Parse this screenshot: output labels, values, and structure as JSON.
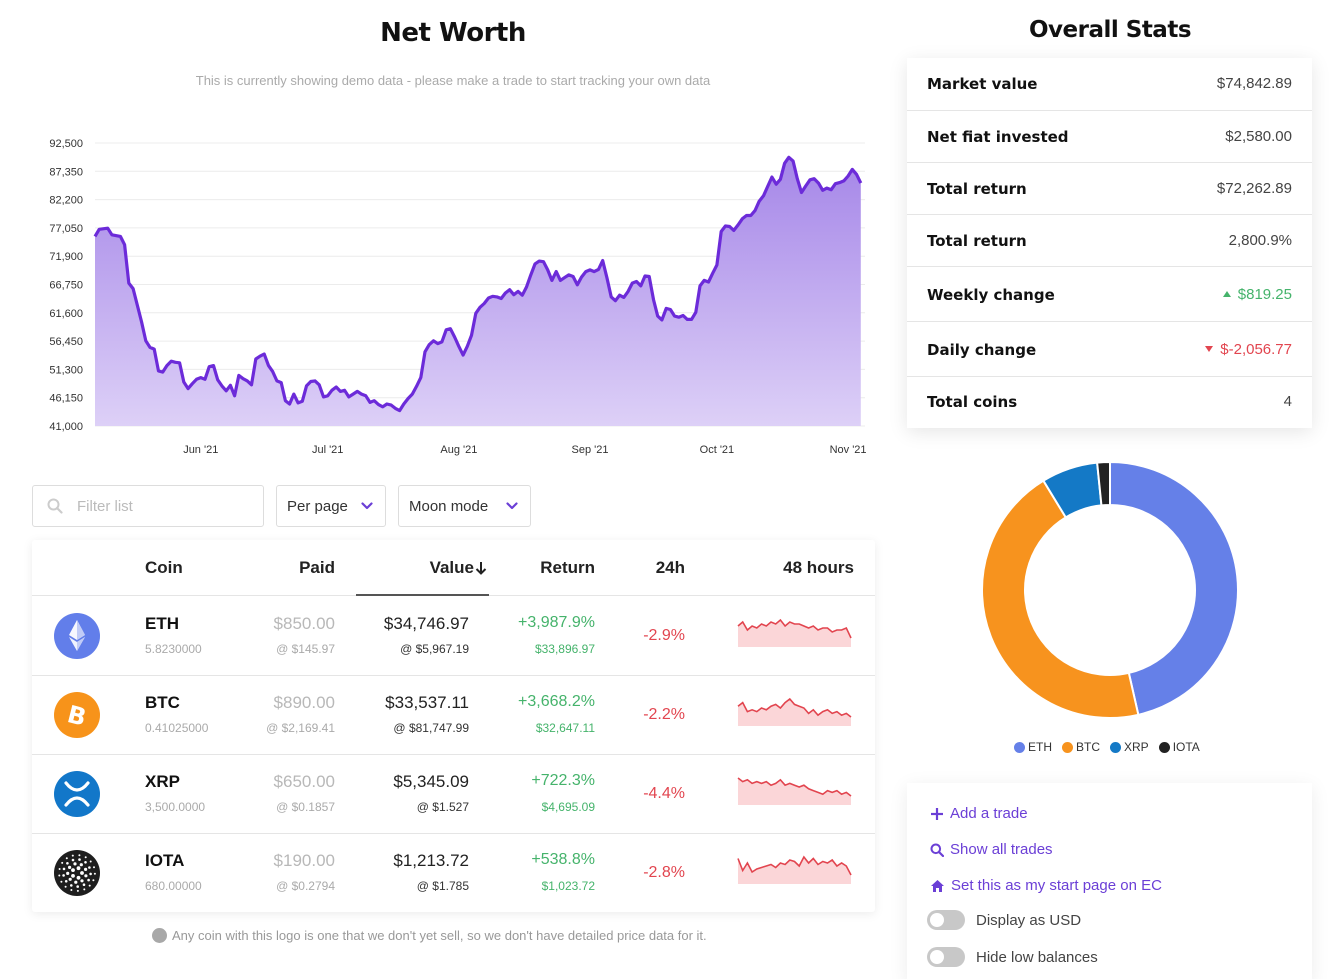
{
  "net_worth": {
    "title": "Net Worth",
    "subtitle": "This is currently showing demo data - please make a trade to start tracking your own data"
  },
  "chart_data": {
    "type": "area",
    "title": "Net Worth",
    "xlabel": "",
    "ylabel": "",
    "ylim": [
      41000,
      92500
    ],
    "y_ticks": [
      "92,500",
      "87,350",
      "82,200",
      "77,050",
      "71,900",
      "66,750",
      "61,600",
      "56,450",
      "51,300",
      "46,150",
      "41,000"
    ],
    "x_ticks": [
      "Jun '21",
      "Jul '21",
      "Aug '21",
      "Sep '21",
      "Oct '21",
      "Nov '21"
    ],
    "grid": true,
    "color": "#6c2bd9",
    "fill": "#b9a0ee",
    "x_range_days": [
      0,
      182
    ],
    "x_tick_days": [
      25,
      55,
      86,
      117,
      147,
      178
    ],
    "points": [
      [
        0,
        75500
      ],
      [
        1,
        76800
      ],
      [
        3,
        77000
      ],
      [
        4,
        75800
      ],
      [
        6,
        75500
      ],
      [
        7,
        74000
      ],
      [
        8,
        67000
      ],
      [
        9,
        66000
      ],
      [
        10,
        63000
      ],
      [
        11,
        60000
      ],
      [
        12,
        56500
      ],
      [
        13,
        55300
      ],
      [
        14,
        55000
      ],
      [
        15,
        51000
      ],
      [
        16,
        50800
      ],
      [
        17,
        52000
      ],
      [
        18,
        52800
      ],
      [
        19,
        52600
      ],
      [
        20,
        52500
      ],
      [
        21,
        49000
      ],
      [
        22,
        47800
      ],
      [
        23,
        48700
      ],
      [
        24,
        49500
      ],
      [
        25,
        49800
      ],
      [
        26,
        49500
      ],
      [
        27,
        51800
      ],
      [
        28,
        52000
      ],
      [
        29,
        49400
      ],
      [
        30,
        48300
      ],
      [
        31,
        47400
      ],
      [
        32,
        48400
      ],
      [
        33,
        46500
      ],
      [
        34,
        50200
      ],
      [
        35,
        49600
      ],
      [
        36,
        49200
      ],
      [
        37,
        48500
      ],
      [
        38,
        53200
      ],
      [
        39,
        53700
      ],
      [
        40,
        54100
      ],
      [
        41,
        52000
      ],
      [
        42,
        50900
      ],
      [
        43,
        49200
      ],
      [
        44,
        48900
      ],
      [
        45,
        45600
      ],
      [
        46,
        45000
      ],
      [
        47,
        46800
      ],
      [
        48,
        45200
      ],
      [
        49,
        45500
      ],
      [
        50,
        48300
      ],
      [
        51,
        49100
      ],
      [
        52,
        49200
      ],
      [
        53,
        48500
      ],
      [
        54,
        46300
      ],
      [
        55,
        46500
      ],
      [
        56,
        47500
      ],
      [
        57,
        48100
      ],
      [
        58,
        47300
      ],
      [
        59,
        47500
      ],
      [
        60,
        46300
      ],
      [
        61,
        46800
      ],
      [
        62,
        47300
      ],
      [
        63,
        46800
      ],
      [
        64,
        46500
      ],
      [
        65,
        45300
      ],
      [
        66,
        45600
      ],
      [
        67,
        44900
      ],
      [
        68,
        44500
      ],
      [
        69,
        45000
      ],
      [
        70,
        44800
      ],
      [
        71,
        44200
      ],
      [
        72,
        43800
      ],
      [
        73,
        45000
      ],
      [
        74,
        46000
      ],
      [
        75,
        46800
      ],
      [
        76,
        48200
      ],
      [
        77,
        49800
      ],
      [
        78,
        54500
      ],
      [
        79,
        55800
      ],
      [
        80,
        56500
      ],
      [
        81,
        56000
      ],
      [
        82,
        56300
      ],
      [
        83,
        58500
      ],
      [
        84,
        58700
      ],
      [
        85,
        57200
      ],
      [
        86,
        55500
      ],
      [
        87,
        53900
      ],
      [
        88,
        55500
      ],
      [
        89,
        57500
      ],
      [
        90,
        61500
      ],
      [
        91,
        62600
      ],
      [
        92,
        63300
      ],
      [
        93,
        64300
      ],
      [
        94,
        64600
      ],
      [
        95,
        64500
      ],
      [
        96,
        64200
      ],
      [
        97,
        65200
      ],
      [
        98,
        65800
      ],
      [
        99,
        64900
      ],
      [
        100,
        65500
      ],
      [
        101,
        64800
      ],
      [
        102,
        66300
      ],
      [
        103,
        68500
      ],
      [
        104,
        70500
      ],
      [
        105,
        71000
      ],
      [
        106,
        70900
      ],
      [
        107,
        69400
      ],
      [
        108,
        67500
      ],
      [
        109,
        69100
      ],
      [
        110,
        67500
      ],
      [
        111,
        68000
      ],
      [
        112,
        68500
      ],
      [
        113,
        68200
      ],
      [
        114,
        66700
      ],
      [
        115,
        68100
      ],
      [
        116,
        69100
      ],
      [
        117,
        69400
      ],
      [
        118,
        69100
      ],
      [
        119,
        69500
      ],
      [
        120,
        71100
      ],
      [
        121,
        68000
      ],
      [
        122,
        64500
      ],
      [
        123,
        63800
      ],
      [
        124,
        64800
      ],
      [
        125,
        64400
      ],
      [
        126,
        65500
      ],
      [
        127,
        67000
      ],
      [
        128,
        67300
      ],
      [
        129,
        66500
      ],
      [
        130,
        68300
      ],
      [
        131,
        68200
      ],
      [
        132,
        64000
      ],
      [
        133,
        61000
      ],
      [
        134,
        60300
      ],
      [
        135,
        62400
      ],
      [
        136,
        62200
      ],
      [
        137,
        61000
      ],
      [
        138,
        60800
      ],
      [
        139,
        61100
      ],
      [
        140,
        60400
      ],
      [
        141,
        60400
      ],
      [
        142,
        61700
      ],
      [
        143,
        66500
      ],
      [
        144,
        67500
      ],
      [
        145,
        67200
      ],
      [
        146,
        68800
      ],
      [
        147,
        70300
      ],
      [
        148,
        76400
      ],
      [
        149,
        77400
      ],
      [
        150,
        77300
      ],
      [
        151,
        76600
      ],
      [
        152,
        77600
      ],
      [
        153,
        78700
      ],
      [
        154,
        79300
      ],
      [
        155,
        79300
      ],
      [
        156,
        80200
      ],
      [
        157,
        81900
      ],
      [
        158,
        82900
      ],
      [
        159,
        84600
      ],
      [
        160,
        86300
      ],
      [
        161,
        85000
      ],
      [
        162,
        85900
      ],
      [
        163,
        88800
      ],
      [
        164,
        89900
      ],
      [
        165,
        89200
      ],
      [
        166,
        86000
      ],
      [
        167,
        83500
      ],
      [
        168,
        84700
      ],
      [
        169,
        85800
      ],
      [
        170,
        86000
      ],
      [
        171,
        85200
      ],
      [
        172,
        83900
      ],
      [
        173,
        84300
      ],
      [
        174,
        84000
      ],
      [
        175,
        85100
      ],
      [
        176,
        85300
      ],
      [
        177,
        85600
      ],
      [
        178,
        86500
      ],
      [
        179,
        87700
      ],
      [
        180,
        86800
      ],
      [
        181,
        85200
      ]
    ]
  },
  "filters": {
    "search_placeholder": "Filter list",
    "per_page_label": "Per page",
    "moon_mode_label": "Moon mode"
  },
  "table": {
    "headers": {
      "coin": "Coin",
      "paid": "Paid",
      "value": "Value",
      "return": "Return",
      "change_24h": "24h",
      "chart_48h": "48 hours"
    },
    "rows": [
      {
        "symbol": "ETH",
        "amount": "5.8230000",
        "paid": "$850.00",
        "paid_at": "@ $145.97",
        "value": "$34,746.97",
        "value_at": "@ $5,967.19",
        "return_pct": "+3,987.9%",
        "return_abs": "$33,896.97",
        "change_24h": "-2.9%",
        "logo_color": "#627eea",
        "spark": [
          6,
          4,
          8,
          6,
          7,
          5,
          6,
          4,
          5,
          3,
          6,
          4,
          5,
          5,
          6,
          7,
          6,
          8,
          7,
          7,
          9,
          8,
          8,
          7,
          12
        ]
      },
      {
        "symbol": "BTC",
        "amount": "0.41025000",
        "paid": "$890.00",
        "paid_at": "@ $2,169.41",
        "value": "$33,537.11",
        "value_at": "@ $81,747.99",
        "return_pct": "+3,668.2%",
        "return_abs": "$32,647.11",
        "change_24h": "-2.2%",
        "logo_color": "#f7931a",
        "spark": [
          5,
          3,
          8,
          7,
          8,
          6,
          7,
          5,
          4,
          6,
          3,
          1,
          4,
          5,
          6,
          9,
          7,
          10,
          8,
          7,
          9,
          8,
          10,
          9,
          11
        ]
      },
      {
        "symbol": "XRP",
        "amount": "3,500.0000",
        "paid": "$650.00",
        "paid_at": "@ $0.1857",
        "value": "$5,345.09",
        "value_at": "@ $1.527",
        "return_pct": "+722.3%",
        "return_abs": "$4,695.09",
        "change_24h": "-4.4%",
        "logo_color": "#1277c9",
        "spark": [
          2,
          4,
          3,
          5,
          4,
          5,
          4,
          6,
          5,
          3,
          6,
          5,
          6,
          7,
          6,
          8,
          9,
          10,
          11,
          9,
          10,
          9,
          11,
          10,
          12
        ]
      },
      {
        "symbol": "IOTA",
        "amount": "680.00000",
        "paid": "$190.00",
        "paid_at": "@ $0.2794",
        "value": "$1,213.72",
        "value_at": "@ $1.785",
        "return_pct": "+538.8%",
        "return_abs": "$1,023.72",
        "change_24h": "-2.8%",
        "logo_color": "#1e1e1e",
        "spark": [
          2,
          10,
          5,
          11,
          9,
          8,
          7,
          6,
          8,
          5,
          6,
          3,
          4,
          7,
          1,
          5,
          2,
          6,
          4,
          5,
          3,
          7,
          5,
          7,
          13
        ]
      }
    ]
  },
  "footnote": "Any coin with this logo is one that we don't yet sell, so we don't have detailed price data for it.",
  "overall_stats": {
    "title": "Overall Stats",
    "rows": [
      {
        "label": "Market value",
        "value": "$74,842.89"
      },
      {
        "label": "Net fiat invested",
        "value": "$2,580.00"
      },
      {
        "label": "Total return",
        "value": "$72,262.89"
      },
      {
        "label": "Total return",
        "value": "2,800.9%"
      },
      {
        "label": "Weekly change",
        "value": "$819.25"
      },
      {
        "label": "Daily change",
        "value": "$-2,056.77"
      },
      {
        "label": "Total coins",
        "value": "4"
      }
    ]
  },
  "allocation": {
    "type": "pie",
    "slices": [
      {
        "name": "ETH",
        "value": 46.4,
        "color": "#6580e8"
      },
      {
        "name": "BTC",
        "value": 44.8,
        "color": "#f7931e"
      },
      {
        "name": "XRP",
        "value": 7.1,
        "color": "#1479c6"
      },
      {
        "name": "IOTA",
        "value": 1.6,
        "color": "#222222"
      }
    ]
  },
  "actions": {
    "add_trade": "Add a trade",
    "show_trades": "Show all trades",
    "start_page": "Set this as my start page on EC",
    "display_usd": "Display as USD",
    "hide_low": "Hide low balances"
  },
  "colors": {
    "accent": "#6b3fd6",
    "positive": "#45b36b",
    "negative": "#e2454f"
  }
}
